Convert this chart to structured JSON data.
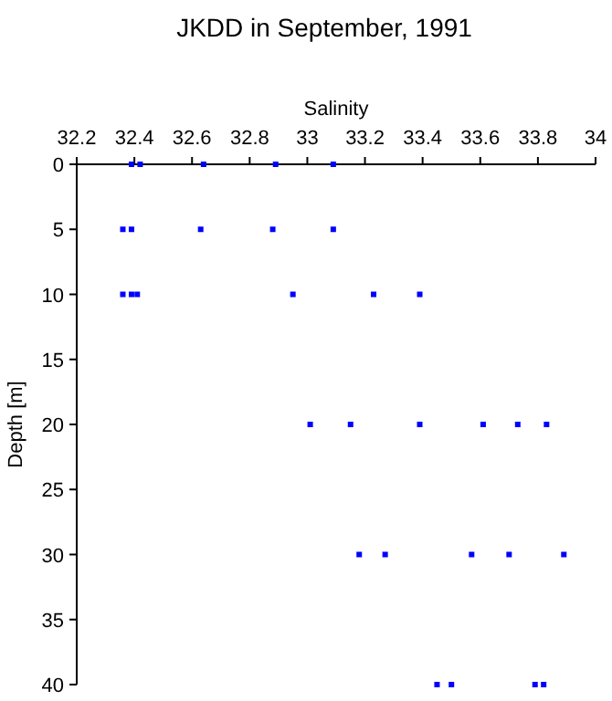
{
  "chart_data": {
    "type": "scatter",
    "title": "JKDD in September, 1991",
    "xlabel": "Salinity",
    "ylabel": "Depth [m]",
    "x": [
      32.39,
      32.42,
      32.64,
      32.89,
      33.09,
      32.36,
      32.39,
      32.63,
      32.88,
      33.09,
      32.36,
      32.39,
      32.41,
      32.95,
      33.23,
      33.39,
      33.01,
      33.15,
      33.39,
      33.61,
      33.73,
      33.83,
      33.18,
      33.27,
      33.57,
      33.7,
      33.89,
      33.45,
      33.5,
      33.79,
      33.82
    ],
    "values": [
      0,
      0,
      0,
      0,
      0,
      5,
      5,
      5,
      5,
      5,
      10,
      10,
      10,
      10,
      10,
      10,
      20,
      20,
      20,
      20,
      20,
      20,
      30,
      30,
      30,
      30,
      30,
      40,
      40,
      40,
      40
    ],
    "color": "#0000ff",
    "marker": "square",
    "xlim": [
      32.2,
      34
    ],
    "xticks": [
      32.2,
      32.4,
      32.6,
      32.8,
      33,
      33.2,
      33.4,
      33.6,
      33.8,
      34
    ],
    "ylim": [
      40,
      0
    ],
    "yticks": [
      0,
      5,
      10,
      15,
      20,
      25,
      30,
      35,
      40
    ],
    "grid": false
  }
}
